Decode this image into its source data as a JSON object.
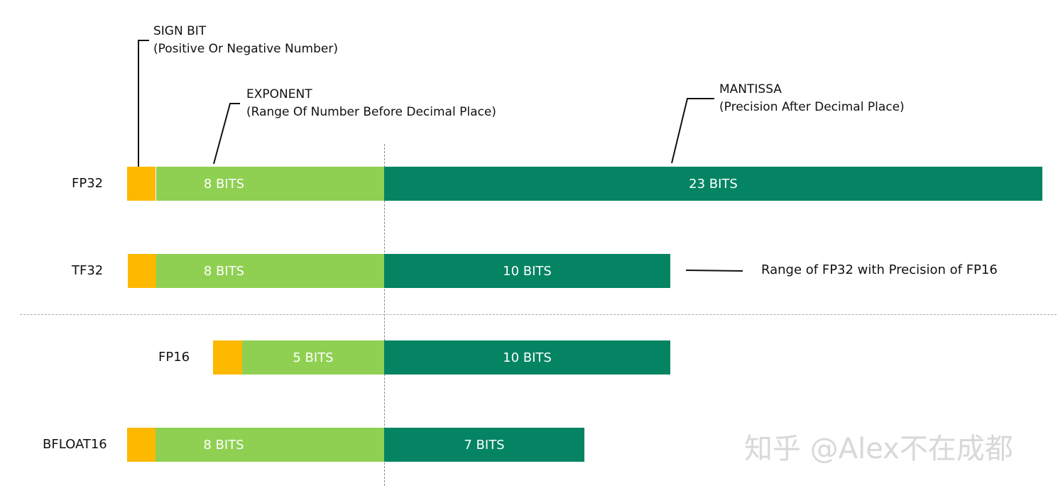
{
  "annotations": {
    "sign": {
      "title": "SIGN BIT",
      "desc": "(Positive Or Negative Number)"
    },
    "exponent": {
      "title": "EXPONENT",
      "desc": "(Range Of Number Before Decimal Place)"
    },
    "mantissa": {
      "title": "MANTISSA",
      "desc": "(Precision After Decimal Place)"
    }
  },
  "formats": [
    {
      "name": "FP32",
      "exponent": "8 BITS",
      "mantissa": "23 BITS"
    },
    {
      "name": "TF32",
      "exponent": "8 BITS",
      "mantissa": "10 BITS"
    },
    {
      "name": "FP16",
      "exponent": "5 BITS",
      "mantissa": "10 BITS"
    },
    {
      "name": "BFLOAT16",
      "exponent": "8 BITS",
      "mantissa": "7 BITS"
    }
  ],
  "tf32_note": "Range of FP32 with Precision of FP16",
  "watermark": "知乎 @Alex不在成都",
  "colors": {
    "sign": "#fdb800",
    "exponent": "#8fd052",
    "mantissa": "#048463"
  }
}
